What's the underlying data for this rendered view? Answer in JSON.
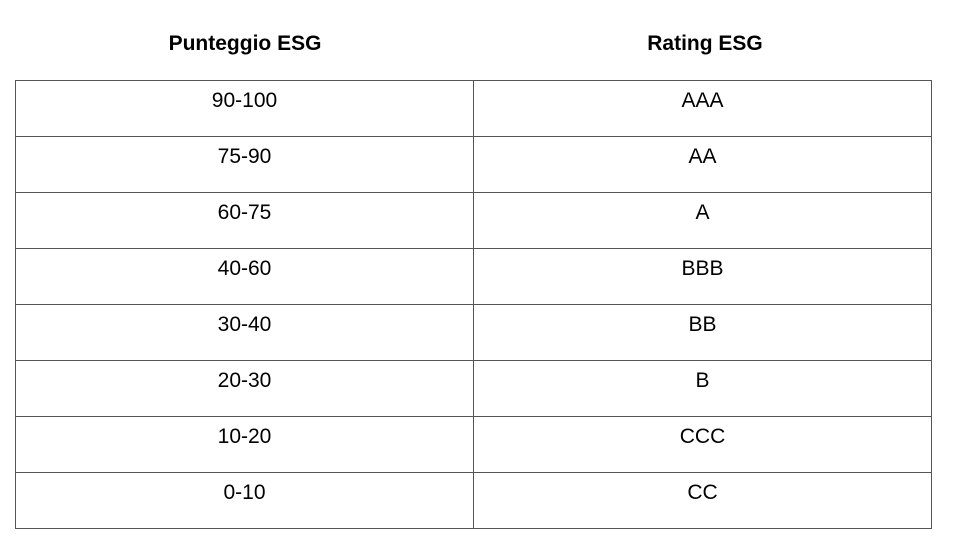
{
  "table": {
    "header": [
      "Punteggio ESG",
      "Rating ESG"
    ],
    "rows": [
      [
        "90-100",
        "AAA"
      ],
      [
        "75-90",
        "AA"
      ],
      [
        "60-75",
        "A"
      ],
      [
        "40-60",
        "BBB"
      ],
      [
        "30-40",
        "BB"
      ],
      [
        "20-30",
        "B"
      ],
      [
        "10-20",
        "CCC"
      ],
      [
        "0-10",
        "CC"
      ]
    ]
  }
}
